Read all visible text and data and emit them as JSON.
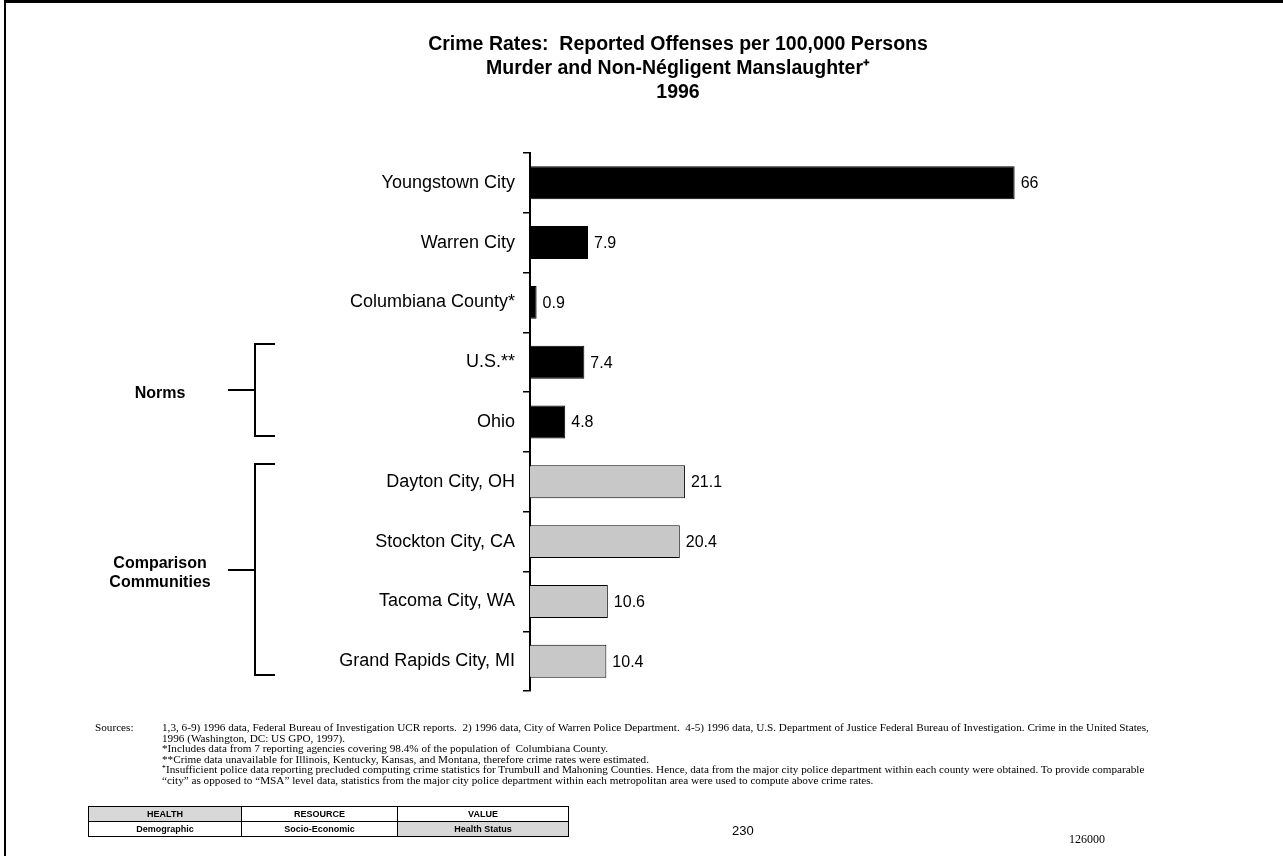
{
  "chart_data": {
    "type": "bar",
    "orientation": "horizontal",
    "title": "Crime Rates:  Reported Offenses per 100,000 Persons",
    "subtitle": "Murder and Non-Négligent Manslaughter⁺\n1996",
    "categories": [
      "Youngstown City",
      "Warren City",
      "Columbiana County*",
      "U.S.**",
      "Ohio",
      "Dayton City, OH",
      "Stockton City, CA",
      "Tacoma City, WA",
      "Grand Rapids City, MI"
    ],
    "values": [
      66,
      7.9,
      0.9,
      7.4,
      4.8,
      21.1,
      20.4,
      10.6,
      10.4
    ],
    "colors": [
      "#000000",
      "#000000",
      "#000000",
      "#000000",
      "#000000",
      "#c8c8c8",
      "#c8c8c8",
      "#c8c8c8",
      "#c8c8c8"
    ],
    "data_labels": true,
    "tick_labels": "y",
    "annotations": [
      "Norms",
      "Comparison Communities",
      "Sources:",
      "1,3, 6-9) 1996 data, Federal Bureau of Investigation UCR reports.  2) 1996 data, City of Warren Police Department.  4-5) 1996 data, U.S. Department of Justice Federal Bureau of Investigation. Crime in the United States, 1996 (Washington, DC: US GPO, 1997).",
      "*Includes data from 7 reporting agencies covering 98.4% of the population of  Columbiana County.",
      "**Crime data unavailable for Illinois, Kentucky, Kansas, and Montana, therefore crime rates were estimated.",
      "⁺Insufficient police data reporting precluded computing crime statistics for Trumbull and Mahoning Counties. Hence, data from the major city police department within each county were obtained. To provide comparable “city” as opposed to “MSA” level data, statistics from the major city police department within each metropolitan area were used to compute above crime rates.",
      "HEALTH",
      "RESOURCE",
      "VALUE",
      "Demographic",
      "Socio-Economic",
      "Health Status",
      "230",
      "126000"
    ]
  }
}
